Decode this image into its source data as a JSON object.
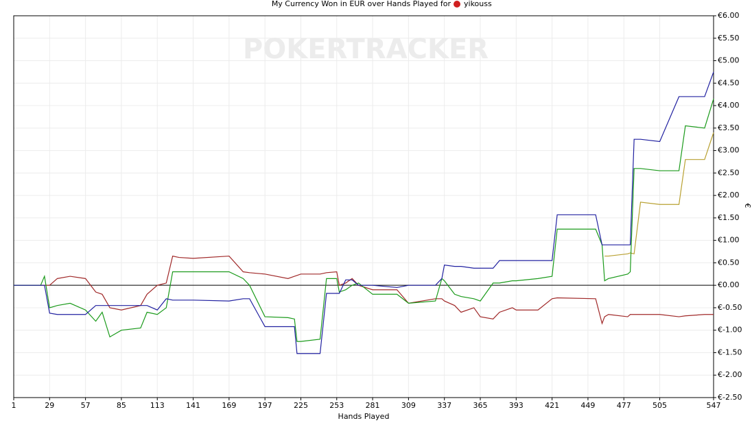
{
  "chart_data": {
    "type": "line",
    "title": "My Currency Won in EUR over Hands Played for",
    "player": "yikouss",
    "watermark": "POKERTRACKER",
    "xlabel": "Hands Played",
    "ylabel": "€",
    "grid": true,
    "xlim": [
      1,
      547
    ],
    "xticks": [
      1,
      29,
      57,
      85,
      113,
      141,
      169,
      197,
      225,
      253,
      281,
      309,
      337,
      365,
      393,
      421,
      449,
      477,
      505,
      547
    ],
    "ylim": [
      -2.5,
      6
    ],
    "yticks": [
      {
        "value": -2.5,
        "label": "€-2.50"
      },
      {
        "value": -2,
        "label": "€-2.00"
      },
      {
        "value": -1.5,
        "label": "€-1.50"
      },
      {
        "value": -1,
        "label": "€-1.00"
      },
      {
        "value": -0.5,
        "label": "€-0.50"
      },
      {
        "value": 0,
        "label": "€0.00"
      },
      {
        "value": 0.5,
        "label": "€0.50"
      },
      {
        "value": 1,
        "label": "€1.00"
      },
      {
        "value": 1.5,
        "label": "€1.50"
      },
      {
        "value": 2,
        "label": "€2.00"
      },
      {
        "value": 2.5,
        "label": "€2.50"
      },
      {
        "value": 3,
        "label": "€3.00"
      },
      {
        "value": 3.5,
        "label": "€3.50"
      },
      {
        "value": 4,
        "label": "€4.00"
      },
      {
        "value": 4.5,
        "label": "€4.50"
      },
      {
        "value": 5,
        "label": "€5.00"
      },
      {
        "value": 5.5,
        "label": "€5.50"
      },
      {
        "value": 6,
        "label": "€6.00"
      }
    ],
    "x": [
      1,
      22,
      25,
      29,
      35,
      45,
      57,
      65,
      70,
      76,
      85,
      100,
      105,
      113,
      120,
      125,
      130,
      141,
      169,
      180,
      185,
      197,
      215,
      220,
      222,
      225,
      240,
      245,
      253,
      255,
      260,
      265,
      270,
      281,
      300,
      309,
      330,
      335,
      337,
      345,
      350,
      360,
      365,
      375,
      380,
      390,
      393,
      410,
      421,
      425,
      455,
      460,
      462,
      465,
      480,
      482,
      485,
      490,
      505,
      520,
      525,
      540,
      547
    ],
    "series": [
      {
        "color": "#a02828",
        "values": [
          0,
          0,
          0,
          0,
          0.15,
          0.2,
          0.15,
          -0.15,
          -0.2,
          -0.5,
          -0.55,
          -0.45,
          -0.2,
          0,
          0.05,
          0.65,
          0.62,
          0.6,
          0.65,
          0.3,
          0.28,
          0.25,
          0.15,
          0.2,
          0.22,
          0.25,
          0.25,
          0.28,
          0.3,
          0,
          0.05,
          0.15,
          0,
          -0.1,
          -0.1,
          -0.4,
          -0.3,
          -0.3,
          -0.35,
          -0.45,
          -0.6,
          -0.5,
          -0.7,
          -0.75,
          -0.6,
          -0.5,
          -0.55,
          -0.55,
          -0.3,
          -0.28,
          -0.3,
          -0.85,
          -0.7,
          -0.65,
          -0.7,
          -0.65,
          -0.65,
          -0.65,
          -0.65,
          -0.7,
          -0.68,
          -0.65,
          -0.65
        ]
      },
      {
        "color": "#b8a030",
        "values": [
          null,
          null,
          null,
          null,
          null,
          null,
          null,
          null,
          null,
          null,
          null,
          null,
          null,
          null,
          null,
          null,
          null,
          null,
          null,
          null,
          null,
          null,
          null,
          null,
          null,
          null,
          null,
          null,
          null,
          null,
          null,
          null,
          null,
          null,
          null,
          null,
          null,
          null,
          null,
          null,
          null,
          null,
          null,
          null,
          null,
          null,
          null,
          null,
          null,
          null,
          null,
          null,
          0.65,
          0.65,
          0.7,
          0.72,
          0.7,
          1.85,
          1.8,
          1.8,
          2.8,
          2.8,
          3.4
        ]
      },
      {
        "color": "#1a9a1a",
        "values": [
          0,
          0,
          0.2,
          -0.5,
          -0.45,
          -0.4,
          -0.55,
          -0.8,
          -0.6,
          -1.15,
          -1,
          -0.95,
          -0.6,
          -0.65,
          -0.5,
          0.3,
          0.3,
          0.3,
          0.3,
          0.15,
          0,
          -0.7,
          -0.72,
          -0.75,
          -1.25,
          -1.25,
          -1.2,
          0.15,
          0.15,
          -0.15,
          -0.1,
          0,
          0.05,
          -0.2,
          -0.2,
          -0.4,
          -0.35,
          0.15,
          0.1,
          -0.2,
          -0.25,
          -0.3,
          -0.35,
          0.05,
          0.05,
          0.1,
          0.1,
          0.15,
          0.2,
          1.25,
          1.25,
          0.9,
          0.1,
          0.15,
          0.25,
          0.3,
          2.6,
          2.6,
          2.55,
          2.55,
          3.55,
          3.5,
          4.15
        ]
      },
      {
        "color": "#2020a0",
        "values": [
          0,
          0,
          0,
          -0.62,
          -0.65,
          -0.65,
          -0.65,
          -0.45,
          -0.45,
          -0.45,
          -0.45,
          -0.45,
          -0.45,
          -0.55,
          -0.3,
          -0.33,
          -0.33,
          -0.33,
          -0.35,
          -0.3,
          -0.3,
          -0.92,
          -0.92,
          -0.92,
          -1.52,
          -1.52,
          -1.52,
          -0.18,
          -0.18,
          -0.18,
          0.12,
          0.12,
          0,
          0,
          -0.05,
          0,
          0,
          0.15,
          0.45,
          0.42,
          0.42,
          0.38,
          0.38,
          0.38,
          0.55,
          0.55,
          0.55,
          0.55,
          0.55,
          1.57,
          1.57,
          0.9,
          0.9,
          0.9,
          0.9,
          0.9,
          3.25,
          3.25,
          3.2,
          4.2,
          4.2,
          4.2,
          4.75
        ]
      }
    ]
  }
}
